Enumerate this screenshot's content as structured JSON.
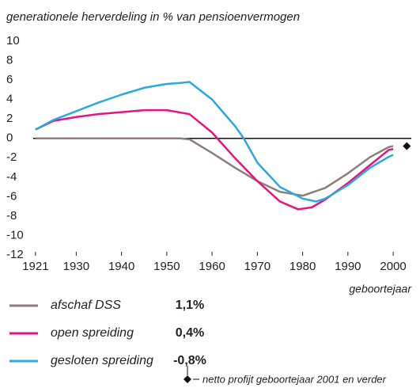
{
  "chart_data": {
    "type": "line",
    "title": "generationele herverdeling in % van pensioenvermogen",
    "x_label": "geboortejaar",
    "xlim": [
      1920.5,
      2004
    ],
    "xticks": [
      1921,
      1930,
      1940,
      1950,
      1960,
      1970,
      1980,
      1990,
      2000
    ],
    "ylim": [
      -12,
      10
    ],
    "yticks": [
      10,
      8,
      6,
      4,
      2,
      0,
      -2,
      -4,
      -6,
      -8,
      -10,
      -12
    ],
    "zero_line": true,
    "series": [
      {
        "name": "afschaf DSS",
        "color": "#8c7f7a",
        "total": 1.1,
        "total_label": "1,1%",
        "x": [
          1921,
          1930,
          1940,
          1950,
          1953,
          1955,
          1960,
          1965,
          1970,
          1975,
          1980,
          1985,
          1990,
          1995,
          1999,
          2000
        ],
        "values": [
          0,
          0,
          0,
          0,
          0,
          -0.1,
          -1.5,
          -3,
          -4.4,
          -5.5,
          -5.9,
          -5.1,
          -3.6,
          -1.9,
          -0.9,
          -0.8
        ]
      },
      {
        "name": "open spreiding",
        "color": "#e5147f",
        "total": 0.4,
        "total_label": "0,4%",
        "x": [
          1921,
          1925,
          1930,
          1935,
          1940,
          1945,
          1950,
          1955,
          1960,
          1965,
          1970,
          1975,
          1979,
          1982,
          1985,
          1990,
          1995,
          1999,
          2000
        ],
        "values": [
          0.9,
          1.8,
          2.2,
          2.5,
          2.7,
          2.9,
          2.9,
          2.5,
          0.6,
          -2,
          -4.4,
          -6.5,
          -7.3,
          -7.1,
          -6.3,
          -4.6,
          -2.7,
          -1.2,
          -1.1
        ]
      },
      {
        "name": "gesloten spreiding",
        "color": "#29a9e0",
        "total": -0.8,
        "total_label": "-0,8%",
        "x": [
          1921,
          1925,
          1930,
          1935,
          1940,
          1945,
          1950,
          1953,
          1955,
          1960,
          1965,
          1967,
          1970,
          1975,
          1980,
          1983,
          1985,
          1990,
          1995,
          1999,
          2000
        ],
        "values": [
          0.9,
          1.9,
          2.8,
          3.7,
          4.5,
          5.2,
          5.6,
          5.7,
          5.8,
          4.0,
          1.3,
          0,
          -2.5,
          -5,
          -6.2,
          -6.5,
          -6.2,
          -4.8,
          -3,
          -1.9,
          -1.7
        ]
      }
    ],
    "marker": {
      "x": 2003,
      "value": -0.8,
      "label": "netto profijt geboortejaar 2001 en verder"
    }
  }
}
